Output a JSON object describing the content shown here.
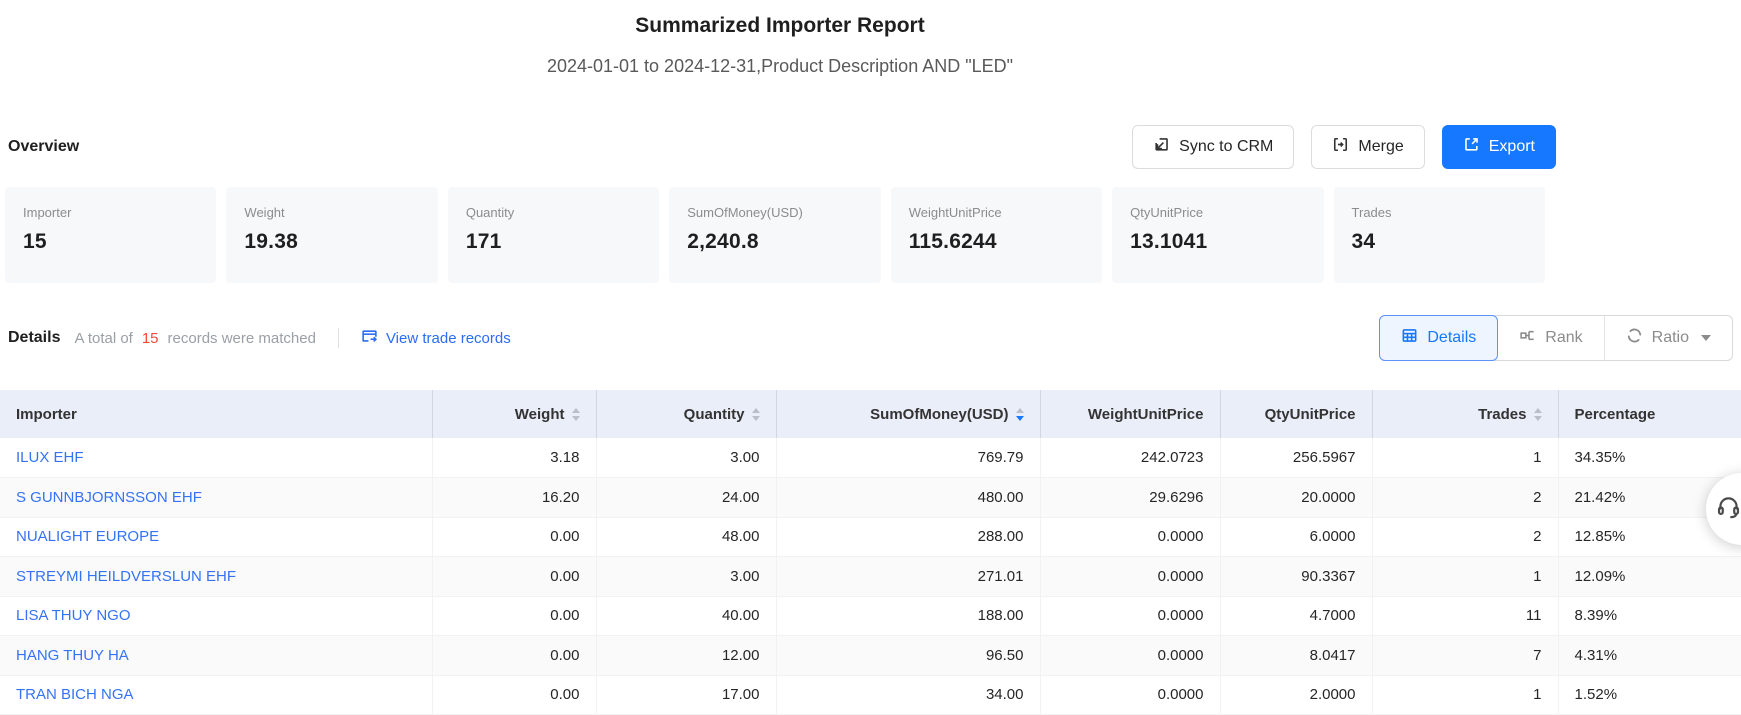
{
  "page": {
    "title": "Summarized Importer Report",
    "subtitle": "2024-01-01 to 2024-12-31,Product Description AND \"LED\""
  },
  "overview": {
    "label": "Overview",
    "actions": [
      {
        "label": "Sync to CRM",
        "icon": "sync-icon",
        "variant": "default"
      },
      {
        "label": "Merge",
        "icon": "merge-icon",
        "variant": "default"
      },
      {
        "label": "Export",
        "icon": "export-icon",
        "variant": "primary"
      }
    ],
    "cards": [
      {
        "label": "Importer",
        "value": "15"
      },
      {
        "label": "Weight",
        "value": "19.38"
      },
      {
        "label": "Quantity",
        "value": "171"
      },
      {
        "label": "SumOfMoney(USD)",
        "value": "2,240.8"
      },
      {
        "label": "WeightUnitPrice",
        "value": "115.6244"
      },
      {
        "label": "QtyUnitPrice",
        "value": "13.1041"
      },
      {
        "label": "Trades",
        "value": "34"
      }
    ]
  },
  "details": {
    "label": "Details",
    "summary_prefix": "A total of",
    "matched_count": "15",
    "summary_suffix": "records were matched",
    "view_link": {
      "label": "View trade records",
      "icon": "trade-records-icon"
    },
    "view_modes": [
      {
        "label": "Details",
        "icon": "table-grid-icon",
        "active": true
      },
      {
        "label": "Rank",
        "icon": "rank-icon",
        "active": false
      },
      {
        "label": "Ratio",
        "icon": "ratio-icon",
        "active": false,
        "dropdown": true
      }
    ]
  },
  "table": {
    "columns": [
      {
        "label": "Importer",
        "align": "left",
        "sortable": false
      },
      {
        "label": "Weight",
        "align": "right",
        "sortable": true,
        "sort": "none"
      },
      {
        "label": "Quantity",
        "align": "right",
        "sortable": true,
        "sort": "none"
      },
      {
        "label": "SumOfMoney(USD)",
        "align": "right",
        "sortable": true,
        "sort": "desc"
      },
      {
        "label": "WeightUnitPrice",
        "align": "right",
        "sortable": false
      },
      {
        "label": "QtyUnitPrice",
        "align": "right",
        "sortable": false
      },
      {
        "label": "Trades",
        "align": "right",
        "sortable": true,
        "sort": "none"
      },
      {
        "label": "Percentage",
        "align": "left",
        "sortable": false
      }
    ],
    "rows": [
      {
        "importer": "ILUX EHF",
        "weight": "3.18",
        "quantity": "3.00",
        "sum_of_money": "769.79",
        "weight_unit_price": "242.0723",
        "qty_unit_price": "256.5967",
        "trades": "1",
        "percentage": "34.35%"
      },
      {
        "importer": "S GUNNBJORNSSON EHF",
        "weight": "16.20",
        "quantity": "24.00",
        "sum_of_money": "480.00",
        "weight_unit_price": "29.6296",
        "qty_unit_price": "20.0000",
        "trades": "2",
        "percentage": "21.42%"
      },
      {
        "importer": "NUALIGHT EUROPE",
        "weight": "0.00",
        "quantity": "48.00",
        "sum_of_money": "288.00",
        "weight_unit_price": "0.0000",
        "qty_unit_price": "6.0000",
        "trades": "2",
        "percentage": "12.85%"
      },
      {
        "importer": "STREYMI HEILDVERSLUN EHF",
        "weight": "0.00",
        "quantity": "3.00",
        "sum_of_money": "271.01",
        "weight_unit_price": "0.0000",
        "qty_unit_price": "90.3367",
        "trades": "1",
        "percentage": "12.09%"
      },
      {
        "importer": "LISA THUY NGO",
        "weight": "0.00",
        "quantity": "40.00",
        "sum_of_money": "188.00",
        "weight_unit_price": "0.0000",
        "qty_unit_price": "4.7000",
        "trades": "11",
        "percentage": "8.39%"
      },
      {
        "importer": "HANG THUY HA",
        "weight": "0.00",
        "quantity": "12.00",
        "sum_of_money": "96.50",
        "weight_unit_price": "0.0000",
        "qty_unit_price": "8.0417",
        "trades": "7",
        "percentage": "4.31%"
      },
      {
        "importer": "TRAN BICH NGA",
        "weight": "0.00",
        "quantity": "17.00",
        "sum_of_money": "34.00",
        "weight_unit_price": "0.0000",
        "qty_unit_price": "2.0000",
        "trades": "1",
        "percentage": "1.52%"
      }
    ]
  },
  "floating": {
    "icon": "headset-icon"
  },
  "colors": {
    "accent_blue": "#1677ff",
    "link_blue": "#3572f5",
    "count_red": "#f5483b",
    "table_header_bg": "#e9eef9",
    "card_bg": "#f7f8fa",
    "stripe_bg": "#fafafa"
  }
}
